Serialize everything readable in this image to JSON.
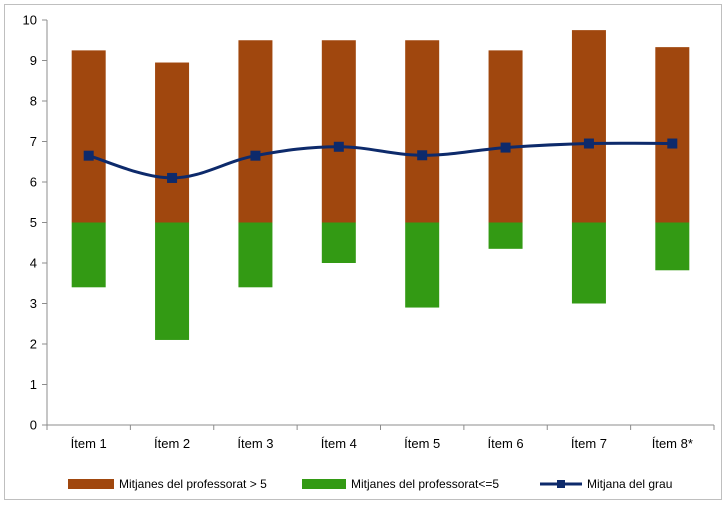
{
  "chart_data": {
    "type": "bar",
    "categories": [
      "Ítem 1",
      "Ítem 2",
      "Ítem 3",
      "Ítem 4",
      "Ítem 5",
      "Ítem 6",
      "Ítem 7",
      "Ítem 8*"
    ],
    "baseline": 5,
    "ylim": [
      0,
      10
    ],
    "yticks": [
      "0",
      "1",
      "2",
      "3",
      "4",
      "5",
      "6",
      "7",
      "8",
      "9",
      "10"
    ],
    "grid": false,
    "legend_position": "bottom",
    "series": [
      {
        "name": "Mitjanes del professorat > 5",
        "type": "bar",
        "color": "#a0470e",
        "values": [
          9.25,
          8.95,
          9.5,
          9.5,
          9.5,
          9.25,
          9.75,
          9.33
        ]
      },
      {
        "name": "Mitjanes del professorat<=5",
        "type": "bar",
        "color": "#339a14",
        "values": [
          3.4,
          2.1,
          3.4,
          4.0,
          2.9,
          4.35,
          3.0,
          3.82
        ]
      },
      {
        "name": "Mitjana del grau",
        "type": "line",
        "color": "#0d2a6b",
        "values": [
          6.65,
          6.1,
          6.65,
          6.87,
          6.66,
          6.85,
          6.95,
          6.95
        ]
      }
    ]
  }
}
